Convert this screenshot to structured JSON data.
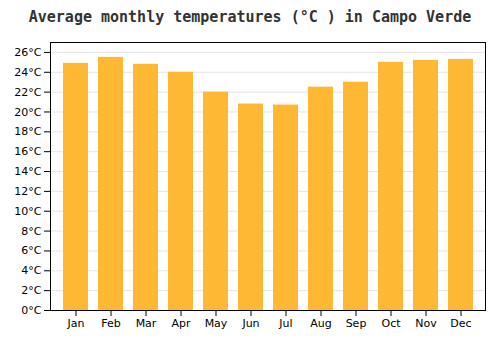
{
  "chart_data": {
    "type": "bar",
    "title": "Average monthly temperatures (°C ) in Campo Verde",
    "categories": [
      "Jan",
      "Feb",
      "Mar",
      "Apr",
      "May",
      "Jun",
      "Jul",
      "Aug",
      "Sep",
      "Oct",
      "Nov",
      "Dec"
    ],
    "values": [
      24.9,
      25.5,
      24.8,
      24.0,
      22.0,
      20.8,
      20.7,
      22.5,
      23.0,
      25.0,
      25.2,
      25.3
    ],
    "color": "#FFB833",
    "ylim": [
      0,
      27
    ],
    "yticks": [
      {
        "value": 0,
        "label": "0°C"
      },
      {
        "value": 2,
        "label": "2°C"
      },
      {
        "value": 4,
        "label": "4°C"
      },
      {
        "value": 6,
        "label": "6°C"
      },
      {
        "value": 8,
        "label": "8°C"
      },
      {
        "value": 10,
        "label": "10°C"
      },
      {
        "value": 12,
        "label": "12°C"
      },
      {
        "value": 14,
        "label": "14°C"
      },
      {
        "value": 16,
        "label": "16°C"
      },
      {
        "value": 18,
        "label": "18°C"
      },
      {
        "value": 20,
        "label": "20°C"
      },
      {
        "value": 22,
        "label": "22°C"
      },
      {
        "value": 24,
        "label": "24°C"
      },
      {
        "value": 26,
        "label": "26°C"
      }
    ],
    "grid": true
  }
}
